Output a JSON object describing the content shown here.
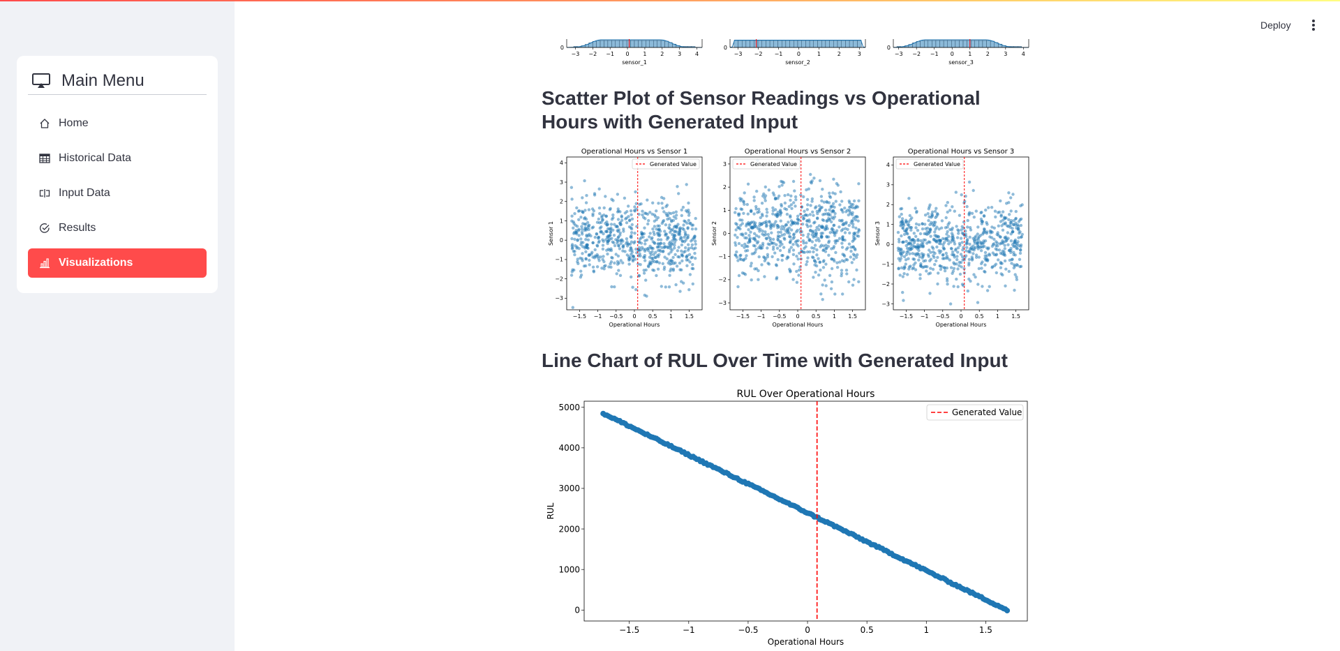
{
  "sidebar": {
    "title": "Main Menu",
    "items": [
      {
        "label": "Home",
        "icon": "house-icon"
      },
      {
        "label": "Historical Data",
        "icon": "table-icon"
      },
      {
        "label": "Input Data",
        "icon": "input-cursor-icon"
      },
      {
        "label": "Results",
        "icon": "check-circle-icon"
      },
      {
        "label": "Visualizations",
        "icon": "bar-chart-icon"
      }
    ],
    "active_index": 4
  },
  "header": {
    "deploy_label": "Deploy"
  },
  "headings": {
    "scatter": "Scatter Plot of Sensor Readings vs Operational Hours with Generated Input",
    "line": "Line Chart of RUL Over Time with Generated Input"
  },
  "colors": {
    "accent": "#ff4b4b",
    "point": "#1f77b4",
    "ref_line": "#ff0000"
  },
  "chart_data": [
    {
      "type": "bar",
      "title": "",
      "xlabel": "sensor_1",
      "ylabel": "",
      "xticks": [
        -3,
        -2,
        -1,
        0,
        1,
        2,
        3,
        4
      ],
      "ytick_visible": [
        0
      ],
      "xlim": [
        -3.5,
        4.3
      ],
      "marker": 0.1,
      "shape": "normal"
    },
    {
      "type": "bar",
      "title": "",
      "xlabel": "sensor_2",
      "ylabel": "",
      "xticks": [
        -3,
        -2,
        -1,
        0,
        1,
        2,
        3
      ],
      "ytick_visible": [
        0
      ],
      "xlim": [
        -3.4,
        3.3
      ],
      "marker": -2.1,
      "shape": "uniform"
    },
    {
      "type": "bar",
      "title": "",
      "xlabel": "sensor_3",
      "ylabel": "",
      "xticks": [
        -3,
        -2,
        -1,
        0,
        1,
        2,
        3,
        4
      ],
      "ytick_visible": [
        0
      ],
      "xlim": [
        -3.3,
        4.3
      ],
      "marker": 1.0,
      "shape": "normal"
    },
    {
      "type": "scatter",
      "title": "Operational Hours vs Sensor 1",
      "xlabel": "Operational Hours",
      "ylabel": "Sensor 1",
      "xticks": [
        -1.5,
        -1.0,
        -0.5,
        0.0,
        0.5,
        1.0,
        1.5
      ],
      "yticks": [
        -3,
        -2,
        -1,
        0,
        1,
        2,
        3,
        4
      ],
      "xlim": [
        -1.85,
        1.85
      ],
      "ylim": [
        -3.6,
        4.3
      ],
      "generated_x": 0.09,
      "legend": "Generated Value",
      "legend_loc": "upper right",
      "n_points": 700
    },
    {
      "type": "scatter",
      "title": "Operational Hours vs Sensor 2",
      "xlabel": "Operational Hours",
      "ylabel": "Sensor 2",
      "xticks": [
        -1.5,
        -1.0,
        -0.5,
        0.0,
        0.5,
        1.0,
        1.5
      ],
      "yticks": [
        -3,
        -2,
        -1,
        0,
        1,
        2,
        3
      ],
      "xlim": [
        -1.85,
        1.85
      ],
      "ylim": [
        -3.3,
        3.3
      ],
      "generated_x": 0.09,
      "legend": "Generated Value",
      "legend_loc": "upper left",
      "n_points": 700
    },
    {
      "type": "scatter",
      "title": "Operational Hours vs Sensor 3",
      "xlabel": "Operational Hours",
      "ylabel": "Sensor 3",
      "xticks": [
        -1.5,
        -1.0,
        -0.5,
        0.0,
        0.5,
        1.0,
        1.5
      ],
      "yticks": [
        -3,
        -2,
        -1,
        0,
        1,
        2,
        3,
        4
      ],
      "xlim": [
        -1.85,
        1.85
      ],
      "ylim": [
        -3.3,
        4.4
      ],
      "generated_x": 0.09,
      "legend": "Generated Value",
      "legend_loc": "upper left",
      "n_points": 700
    },
    {
      "type": "line",
      "title": "RUL Over Operational Hours",
      "xlabel": "Operational Hours",
      "ylabel": "RUL",
      "xticks": [
        -1.5,
        -1.0,
        -0.5,
        0.0,
        0.5,
        1.0,
        1.5
      ],
      "yticks": [
        0,
        1000,
        2000,
        3000,
        4000,
        5000
      ],
      "xlim": [
        -1.88,
        1.85
      ],
      "ylim": [
        -270,
        5150
      ],
      "x_range": [
        -1.72,
        1.68
      ],
      "y_range": [
        4850,
        0
      ],
      "generated_x": 0.08,
      "legend": "Generated Value",
      "legend_loc": "upper right"
    }
  ]
}
